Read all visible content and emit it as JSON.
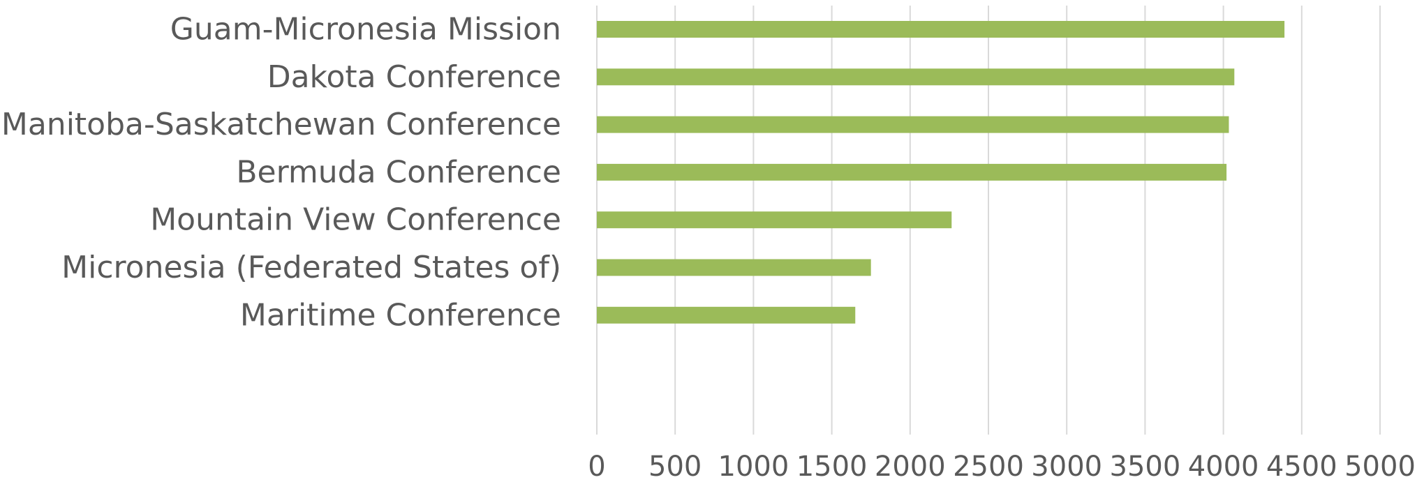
{
  "chart_data": {
    "type": "bar",
    "orientation": "horizontal",
    "categories": [
      "Guam-Micronesia Mission",
      "Dakota Conference",
      "Manitoba-Saskatchewan Conference",
      "Bermuda Conference",
      "Mountain View Conference",
      "Micronesia (Federated States of)",
      "Maritime Conference"
    ],
    "values": [
      4390,
      4070,
      4035,
      4020,
      2265,
      1750,
      1650
    ],
    "xlim": [
      0,
      5000
    ],
    "xticks": [
      "0",
      "500",
      "1000",
      "1500",
      "2000",
      "2500",
      "3000",
      "3500",
      "4000",
      "4500",
      "5000"
    ],
    "title": "",
    "xlabel": "",
    "ylabel": "",
    "grid": "vertical",
    "legend": "none",
    "bar_color": "#9BBB59"
  }
}
